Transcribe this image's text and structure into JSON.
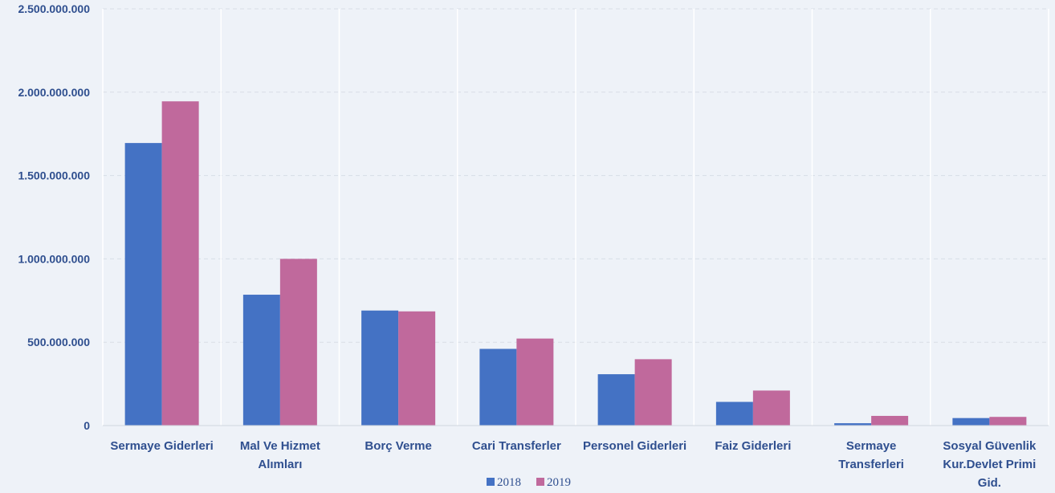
{
  "chart_data": {
    "type": "bar",
    "categories": [
      [
        "Sermaye Giderleri"
      ],
      [
        "Mal Ve Hizmet",
        "Alımları"
      ],
      [
        "Borç Verme"
      ],
      [
        "Cari Transferler"
      ],
      [
        "Personel Giderleri"
      ],
      [
        "Faiz Giderleri"
      ],
      [
        "Sermaye",
        "Transferleri"
      ],
      [
        "Sosyal Güvenlik",
        "Kur.Devlet Primi",
        "Gid."
      ]
    ],
    "series": [
      {
        "name": "2018",
        "color": "#4472c4",
        "values": [
          1695000000,
          785000000,
          690000000,
          460000000,
          308000000,
          142000000,
          14000000,
          45000000
        ]
      },
      {
        "name": "2019",
        "color": "#c0699c",
        "values": [
          1945000000,
          1000000000,
          685000000,
          522000000,
          398000000,
          210000000,
          58000000,
          52000000
        ]
      }
    ],
    "ylim": [
      0,
      2500000000
    ],
    "yticks": [
      {
        "value": 0,
        "label": "0"
      },
      {
        "value": 500000000,
        "label": "500.000.000"
      },
      {
        "value": 1000000000,
        "label": "1.000.000.000"
      },
      {
        "value": 1500000000,
        "label": "1.500.000.000"
      },
      {
        "value": 2000000000,
        "label": "2.000.000.000"
      },
      {
        "value": 2500000000,
        "label": "2.500.000.000"
      }
    ],
    "grid": true,
    "legend_position": "bottom"
  }
}
